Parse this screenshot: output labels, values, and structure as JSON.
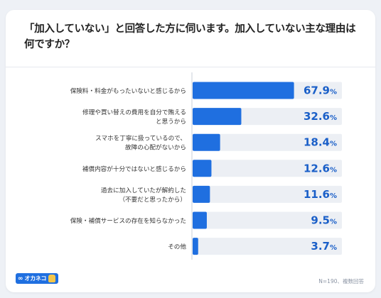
{
  "title": "「加入していない」と回答した方に伺います。加入していない主な理由は何ですか？",
  "footnote": "N=190、複数回答",
  "logo": {
    "text": "オカネコ",
    "mark": "∞"
  },
  "colors": {
    "bar": "#1f6fe0",
    "track": "#eceff4",
    "label": "#333333",
    "value": "#1a5fc8"
  },
  "chart_data": {
    "type": "bar",
    "orientation": "horizontal",
    "unit": "%",
    "categories": [
      [
        "保険料・料金がもったいないと感じるから"
      ],
      [
        "修理や買い替えの費用を自分で賄える",
        "と思うから"
      ],
      [
        "スマホを丁寧に扱っているので、",
        "故障の心配がないから"
      ],
      [
        "補償内容が十分ではないと感じるから"
      ],
      [
        "過去に加入していたが解約した",
        "（不要だと思ったから）"
      ],
      [
        "保険・補償サービスの存在を知らなかった"
      ],
      [
        "その他"
      ]
    ],
    "values": [
      67.9,
      32.6,
      18.4,
      12.6,
      11.6,
      9.5,
      3.7
    ],
    "value_labels": [
      "67.9",
      "32.6",
      "18.4",
      "12.6",
      "11.6",
      "9.5",
      "3.7"
    ],
    "xlim": [
      0,
      100
    ]
  }
}
